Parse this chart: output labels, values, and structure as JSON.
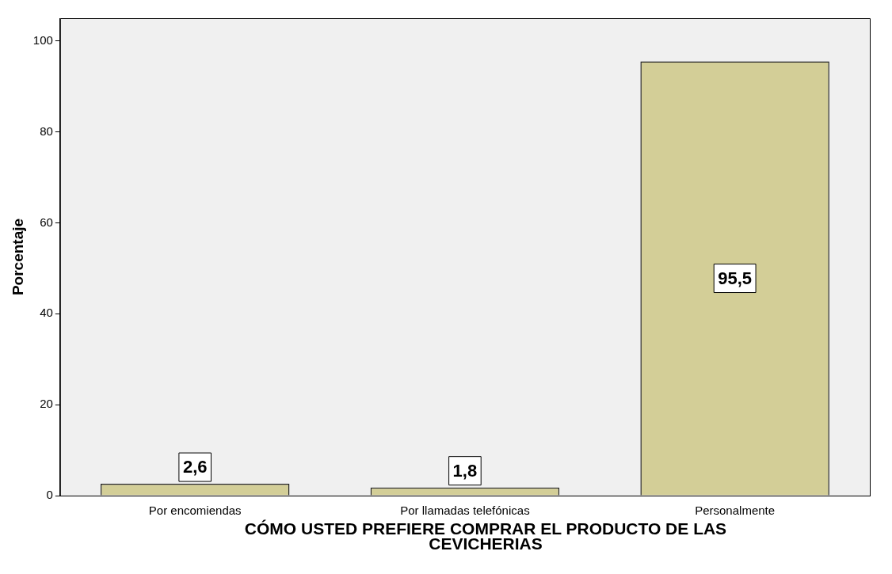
{
  "chart_data": {
    "type": "bar",
    "xlabel": "CÓMO USTED PREFIERE COMPRAR EL PRODUCTO DE LAS CEVICHERIAS",
    "ylabel": "Porcentaje",
    "categories": [
      "Por encomiendas",
      "Por llamadas telefónicas",
      "Personalmente"
    ],
    "values": [
      2.6,
      1.8,
      95.5
    ],
    "value_labels": [
      "2,6",
      "1,8",
      "95,5"
    ],
    "color": "#d3ce97",
    "ylim": [
      0,
      105
    ],
    "yticks": [
      0,
      20,
      40,
      60,
      80,
      100
    ],
    "grid": false
  }
}
